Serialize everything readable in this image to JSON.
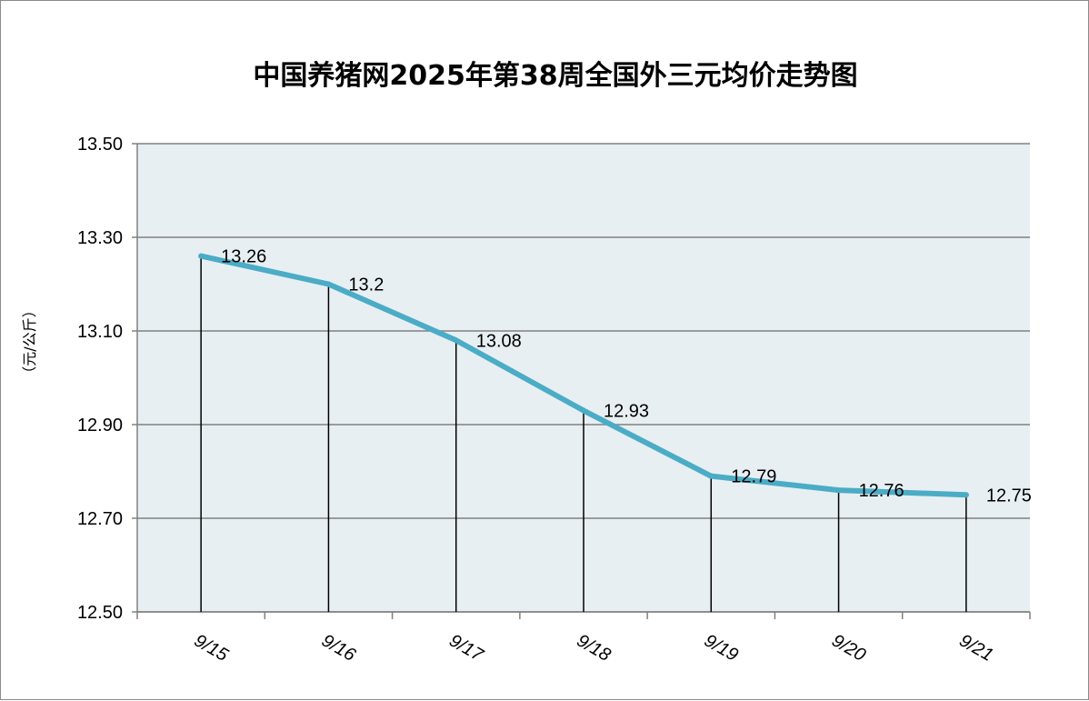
{
  "chart_data": {
    "type": "line",
    "title": "中国养猪网2025年第38周全国外三元均价走势图",
    "xlabel": "",
    "ylabel": "（元/公斤）",
    "categories": [
      "9/15",
      "9/16",
      "9/17",
      "9/18",
      "9/19",
      "9/20",
      "9/21"
    ],
    "values": [
      13.26,
      13.2,
      13.08,
      12.93,
      12.79,
      12.76,
      12.75
    ],
    "data_labels": [
      "13.26",
      "13.2",
      "13.08",
      "12.93",
      "12.79",
      "12.76",
      "12.75"
    ],
    "y_ticks": [
      "12.50",
      "12.70",
      "12.90",
      "13.10",
      "13.30",
      "13.50"
    ],
    "ylim": [
      12.5,
      13.5
    ],
    "grid": true,
    "legend": "none",
    "colors": {
      "line": "#4bacc6",
      "plot_bg": "#e8eff3",
      "grid": "#808080",
      "drop_line": "#000000"
    }
  }
}
